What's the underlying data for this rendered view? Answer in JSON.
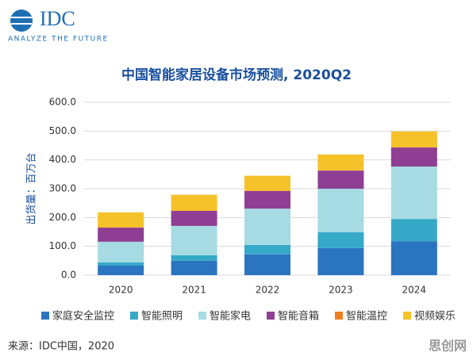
{
  "logo": {
    "brand": "IDC",
    "tagline": "ANALYZE THE FUTURE"
  },
  "chart_data": {
    "type": "stacked-bar",
    "title": "中国智能家居设备市场预测, 2020Q2",
    "y_label": "出货量：百万台",
    "categories": [
      "2020",
      "2021",
      "2022",
      "2023",
      "2024"
    ],
    "series": [
      {
        "name": "家庭安全监控",
        "color": "#2b74c0",
        "values": [
          33,
          50,
          72,
          94,
          118
        ]
      },
      {
        "name": "智能照明",
        "color": "#36a9c9",
        "values": [
          11,
          19,
          33,
          55,
          77
        ]
      },
      {
        "name": "智能家电",
        "color": "#a6dbe3",
        "values": [
          72,
          102,
          126,
          151,
          182
        ]
      },
      {
        "name": "智能音箱",
        "color": "#8e3e93",
        "values": [
          49,
          52,
          61,
          63,
          66
        ]
      },
      {
        "name": "智能温控",
        "color": "#f07f23",
        "values": [
          1,
          1,
          1,
          1,
          1
        ]
      },
      {
        "name": "视频娱乐",
        "color": "#f5c22a",
        "values": [
          52,
          55,
          52,
          55,
          55
        ]
      }
    ],
    "ylim": [
      0,
      600
    ],
    "yticks": [
      {
        "value": 0,
        "label": "0.0"
      },
      {
        "value": 100,
        "label": "100.0"
      },
      {
        "value": 200,
        "label": "200.0"
      },
      {
        "value": 300,
        "label": "300.0"
      },
      {
        "value": 400,
        "label": "400.0"
      },
      {
        "value": 500,
        "label": "500.0"
      },
      {
        "value": 600,
        "label": "600.0"
      }
    ],
    "grid": true
  },
  "source": "来源：IDC中国，2020",
  "watermark": "思创网"
}
